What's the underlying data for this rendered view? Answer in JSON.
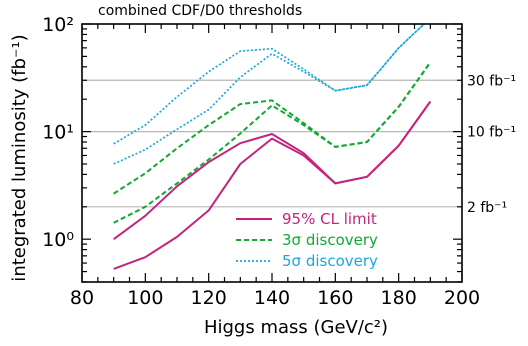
{
  "chart_data": {
    "type": "line",
    "title": "combined CDF/D0 thresholds",
    "xlabel": "Higgs mass (GeV/c²)",
    "ylabel": "integrated luminosity (fb⁻¹)",
    "xlim": [
      80,
      200
    ],
    "ylim": [
      0.4,
      100
    ],
    "yscale": "log",
    "x_ticks": [
      80,
      100,
      120,
      140,
      160,
      180,
      200
    ],
    "x_tick_labels": [
      "80",
      "100",
      "120",
      "140",
      "160",
      "180",
      "200"
    ],
    "y_ticks": [
      1,
      10,
      100
    ],
    "y_tick_labels": [
      "10⁰",
      "10¹",
      "10²"
    ],
    "reference_lines": [
      {
        "value": 30,
        "label": "30 fb⁻¹"
      },
      {
        "value": 10,
        "label": "10 fb⁻¹"
      },
      {
        "value": 2,
        "label": "2 fb⁻¹"
      }
    ],
    "legend_position": "lower-right",
    "colors": {
      "cl95": "#c2257e",
      "sigma3": "#11a833",
      "sigma5": "#1aa7df",
      "reference": "#b8b8b8"
    },
    "series": [
      {
        "name": "95% CL limit",
        "color": "#c2257e",
        "dash": "solid",
        "x": [
          90,
          100,
          110,
          120,
          130,
          140,
          150,
          160,
          170,
          180,
          190
        ],
        "y": [
          1.0,
          1.65,
          3.1,
          5.2,
          7.8,
          9.5,
          6.3,
          3.3,
          3.8,
          7.4,
          19
        ]
      },
      {
        "name": "95% CL limit",
        "color": "#c2257e",
        "dash": "solid",
        "x": [
          90,
          100,
          110,
          120,
          130,
          140,
          150,
          160,
          170,
          180,
          190
        ],
        "y": [
          0.53,
          0.68,
          1.05,
          1.85,
          5.0,
          8.6,
          6.0,
          3.3,
          3.8,
          7.4,
          19
        ]
      },
      {
        "name": "3σ discovery",
        "color": "#11a833",
        "dash": "dashed",
        "x": [
          90,
          100,
          110,
          120,
          130,
          140,
          150,
          160,
          170,
          180,
          190
        ],
        "y": [
          2.65,
          4.1,
          7.0,
          11.5,
          18.0,
          19.5,
          12.0,
          7.2,
          8.0,
          17.0,
          44
        ]
      },
      {
        "name": "3σ discovery",
        "color": "#11a833",
        "dash": "dashed",
        "x": [
          90,
          100,
          110,
          120,
          130,
          140,
          150,
          160,
          170,
          180,
          190
        ],
        "y": [
          1.42,
          2.0,
          3.3,
          5.5,
          9.6,
          17.5,
          11.5,
          7.2,
          8.0,
          17.0,
          44
        ]
      },
      {
        "name": "5σ discovery",
        "color": "#1aa7df",
        "dash": "dotted",
        "x": [
          90,
          100,
          110,
          120,
          130,
          140,
          150,
          160,
          170,
          175,
          180,
          188
        ],
        "y": [
          7.7,
          11.5,
          21.0,
          36.0,
          56.0,
          59.0,
          38.0,
          24.0,
          27.0,
          40.0,
          60.0,
          100
        ]
      },
      {
        "name": "5σ discovery",
        "color": "#1aa7df",
        "dash": "dotted",
        "x": [
          90,
          100,
          110,
          120,
          130,
          140,
          150,
          160,
          170,
          175,
          180,
          188
        ],
        "y": [
          5.0,
          6.8,
          10.5,
          16.0,
          32.0,
          53.0,
          36.0,
          24.0,
          27.0,
          40.0,
          60.0,
          100
        ]
      }
    ],
    "legend": [
      {
        "label": "95% CL limit",
        "color": "#c2257e",
        "dash": "solid"
      },
      {
        "label": "3σ discovery",
        "color": "#11a833",
        "dash": "dashed"
      },
      {
        "label": "5σ discovery",
        "color": "#1aa7df",
        "dash": "dotted"
      }
    ]
  }
}
